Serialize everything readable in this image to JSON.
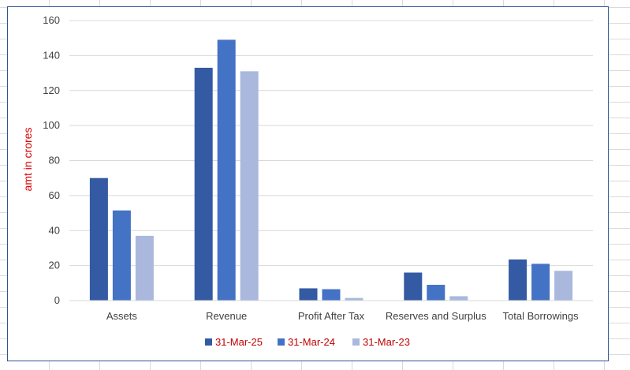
{
  "chart_data": {
    "type": "bar",
    "categories": [
      "Assets",
      "Revenue",
      "Profit After Tax",
      "Reserves and Surplus",
      "Total Borrowings"
    ],
    "series": [
      {
        "name": "31-Mar-25",
        "color": "#335aa3",
        "values": [
          70,
          133,
          7,
          16,
          23.5
        ]
      },
      {
        "name": "31-Mar-24",
        "color": "#4472c4",
        "values": [
          51.5,
          149,
          6.5,
          9,
          21
        ]
      },
      {
        "name": "31-Mar-23",
        "color": "#a9b8dc",
        "values": [
          37,
          131,
          1.5,
          2.5,
          17
        ]
      }
    ],
    "ylabel": "amt in crores",
    "ylim": [
      0,
      160
    ],
    "yticks": [
      0,
      20,
      40,
      60,
      80,
      100,
      120,
      140,
      160
    ],
    "grid": true,
    "legend_position": "bottom"
  }
}
